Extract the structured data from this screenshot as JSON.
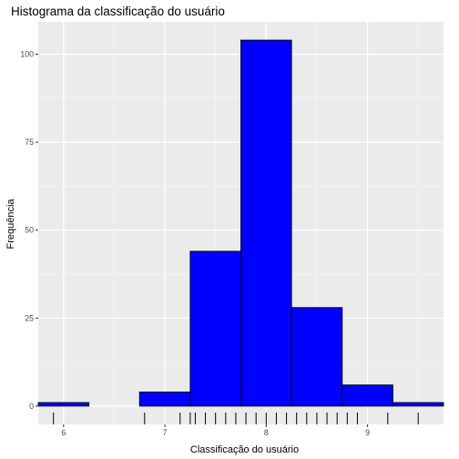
{
  "chart_data": {
    "type": "bar",
    "title": "Histograma da classificação do usuário",
    "xlabel": "Classificação do usuário",
    "ylabel": "Frequência",
    "xlim": [
      5.75,
      9.75
    ],
    "ylim": [
      -5.2,
      109.2
    ],
    "x_ticks": [
      "6",
      "7",
      "8",
      "9"
    ],
    "y_ticks": [
      "0",
      "25",
      "50",
      "75",
      "100"
    ],
    "grid": true,
    "bar_color": "#0000ff",
    "bar_outline": "#000000",
    "panel_background": "#ebebeb",
    "bins": [
      {
        "x0": 5.75,
        "x1": 6.25,
        "value": 1
      },
      {
        "x0": 6.25,
        "x1": 6.75,
        "value": 0
      },
      {
        "x0": 6.75,
        "x1": 7.25,
        "value": 4
      },
      {
        "x0": 7.25,
        "x1": 7.75,
        "value": 44
      },
      {
        "x0": 7.75,
        "x1": 8.25,
        "value": 104
      },
      {
        "x0": 8.25,
        "x1": 8.75,
        "value": 28
      },
      {
        "x0": 8.75,
        "x1": 9.25,
        "value": 6
      },
      {
        "x0": 9.25,
        "x1": 9.75,
        "value": 1
      }
    ],
    "rug": [
      5.9,
      6.8,
      7.15,
      7.25,
      7.3,
      7.4,
      7.5,
      7.6,
      7.7,
      7.8,
      7.9,
      8.0,
      8.1,
      8.2,
      8.3,
      8.4,
      8.5,
      8.6,
      8.7,
      8.8,
      8.9,
      9.2,
      9.5
    ]
  }
}
